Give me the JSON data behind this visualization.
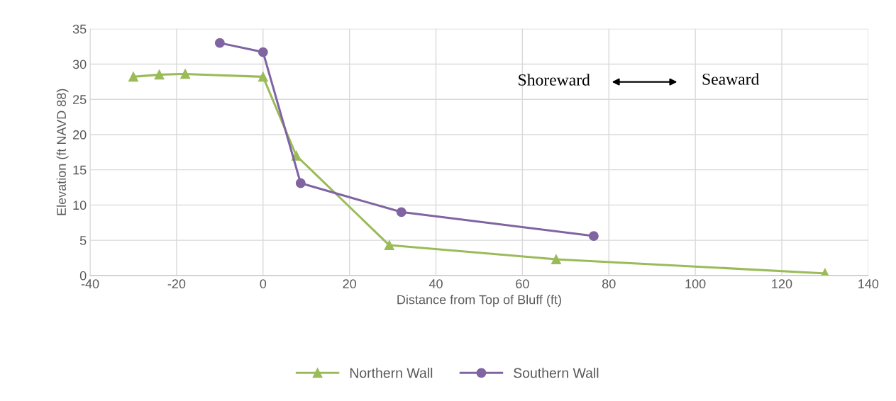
{
  "chart_data": {
    "type": "line",
    "xlabel": "Distance from Top of Bluff (ft)",
    "ylabel": "Elevation (ft NAVD 88)",
    "series": [
      {
        "name": "Northern Wall",
        "color": "#9bbb59",
        "marker": "triangle",
        "x": [
          -30,
          -24,
          -18,
          0,
          7.7,
          29.2,
          67.8,
          130
        ],
        "values": [
          28.2,
          28.5,
          28.6,
          28.2,
          17.0,
          4.3,
          2.3,
          0.3
        ]
      },
      {
        "name": "Southern Wall",
        "color": "#8064a2",
        "marker": "circle",
        "x": [
          -10,
          0,
          8.7,
          32,
          76.5
        ],
        "values": [
          33.0,
          31.7,
          13.1,
          9.0,
          5.6
        ]
      }
    ],
    "xlim": [
      -40,
      140
    ],
    "xticks": [
      -40,
      -20,
      0,
      20,
      40,
      60,
      80,
      100,
      120,
      140
    ],
    "ylim": [
      0,
      35
    ],
    "yticks": [
      0,
      5,
      10,
      15,
      20,
      25,
      30,
      35
    ],
    "annotations": [
      "Shoreward",
      "Seaward"
    ],
    "grid": true,
    "legend": "bottom",
    "line_style": "solid"
  }
}
